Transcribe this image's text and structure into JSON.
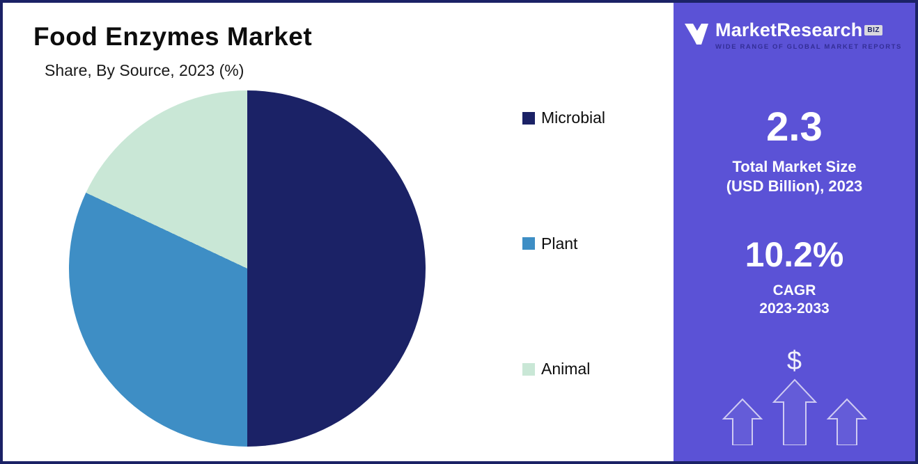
{
  "header": {
    "title": "Food Enzymes Market",
    "subtitle": "Share, By Source, 2023 (%)"
  },
  "chart_data": {
    "type": "pie",
    "title": "Food Enzymes Market Share, By Source, 2023 (%)",
    "categories": [
      "Microbial",
      "Plant",
      "Animal"
    ],
    "values": [
      50,
      32,
      18
    ],
    "colors": [
      "#1b2266",
      "#3e8ec5",
      "#c9e7d6"
    ],
    "legend_position": "right",
    "start_angle_deg": 0,
    "direction": "clockwise",
    "data_labels_shown": false
  },
  "sidebar": {
    "background": "#5b52d6",
    "logo": {
      "brand": "MarketResearch",
      "badge": "BIZ",
      "tagline": "WIDE RANGE OF GLOBAL MARKET REPORTS"
    },
    "stat1": {
      "value": "2.3",
      "label_line1": "Total Market Size",
      "label_line2": "(USD Billion), 2023"
    },
    "stat2": {
      "value": "10.2%",
      "label_line1": "CAGR",
      "label_line2": "2023-2033"
    },
    "dollar_symbol": "$"
  }
}
